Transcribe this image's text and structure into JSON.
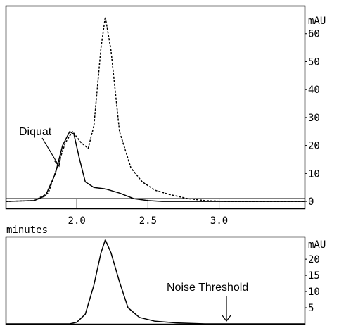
{
  "chart_data": [
    {
      "type": "line",
      "xlabel": "minutes",
      "ylabel": "mAU",
      "xlim": [
        1.5,
        3.6
      ],
      "ylim": [
        -2.5,
        70
      ],
      "x_ticks": [
        "2.0",
        "2.5",
        "3.0"
      ],
      "y_ticks": [
        "0",
        "10",
        "20",
        "30",
        "40",
        "50",
        "60"
      ],
      "annotations": [
        "Diquat"
      ],
      "series": [
        {
          "style": "solid",
          "x": [
            1.5,
            1.7,
            1.78,
            1.85,
            1.9,
            1.95,
            1.98,
            2.02,
            2.06,
            2.12,
            2.2,
            2.3,
            2.4,
            2.5,
            2.6,
            3.6
          ],
          "y": [
            0,
            0.3,
            2,
            10,
            20,
            25,
            24,
            15,
            7,
            5,
            4.5,
            3,
            1,
            0.3,
            0,
            0
          ]
        },
        {
          "style": "dashed",
          "x": [
            1.5,
            1.7,
            1.8,
            1.86,
            1.92,
            1.97,
            2.03,
            2.08,
            2.12,
            2.17,
            2.2,
            2.24,
            2.3,
            2.38,
            2.46,
            2.55,
            2.65,
            2.78,
            2.9,
            3.05,
            3.6
          ],
          "y": [
            0,
            0.3,
            3,
            12,
            21,
            25,
            21,
            19,
            27,
            55,
            66,
            54,
            25,
            12,
            7,
            4,
            2.5,
            1,
            0.3,
            0,
            0
          ]
        }
      ]
    },
    {
      "type": "line",
      "ylabel": "mAU",
      "xlim": [
        1.5,
        3.6
      ],
      "ylim": [
        0,
        27
      ],
      "y_ticks": [
        "5",
        "10",
        "15",
        "20"
      ],
      "annotations": [
        "Noise Threshold"
      ],
      "series": [
        {
          "style": "solid",
          "x": [
            1.5,
            1.95,
            2.0,
            2.06,
            2.12,
            2.17,
            2.2,
            2.24,
            2.3,
            2.36,
            2.44,
            2.55,
            2.7,
            2.9,
            3.6
          ],
          "y": [
            0,
            0,
            0.5,
            3,
            12,
            22,
            26,
            22,
            13,
            5,
            2,
            0.8,
            0.3,
            0,
            0
          ]
        }
      ]
    }
  ]
}
